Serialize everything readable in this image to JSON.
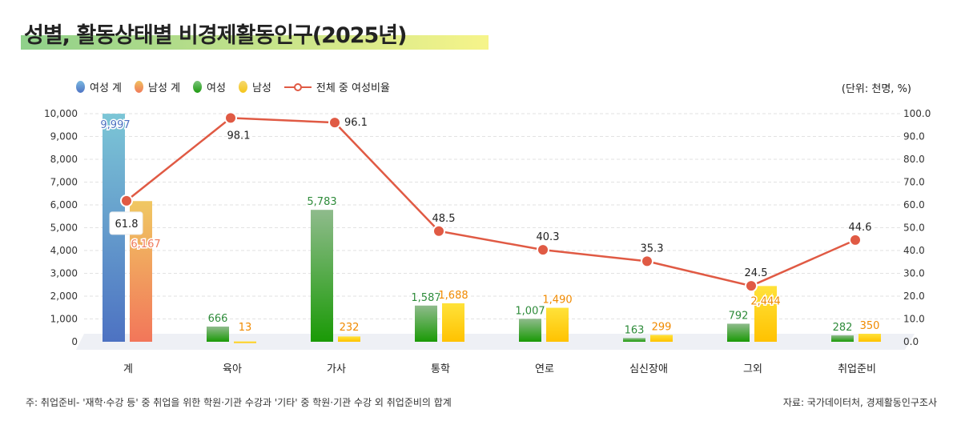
{
  "title": "성별, 활동상태별 비경제활동인구(2025년)",
  "unit": "(단위: 천명, %)",
  "note": "주: 취업준비- '재학·수강 등' 중 취업을 위한 학원·기관 수강과 '기타' 중 학원·기관 수강 외 취업준비의 합계",
  "source": "자료: 국가데이터처, 경제활동인구조사",
  "chart_data": {
    "type": "bar+line",
    "categories": [
      "계",
      "육아",
      "가사",
      "통학",
      "연로",
      "심신장애",
      "그외",
      "취업준비"
    ],
    "series": [
      {
        "name": "여성 계",
        "type": "bar",
        "values": [
          9997,
          null,
          null,
          null,
          null,
          null,
          null,
          null
        ],
        "color": "#4f74c4"
      },
      {
        "name": "남성 계",
        "type": "bar",
        "values": [
          6167,
          null,
          null,
          null,
          null,
          null,
          null,
          null
        ],
        "color": "#f07a5a"
      },
      {
        "name": "여성",
        "type": "bar",
        "values": [
          null,
          666,
          5783,
          1587,
          1007,
          163,
          792,
          282
        ],
        "color": "#2b9a2b"
      },
      {
        "name": "남성",
        "type": "bar",
        "values": [
          null,
          13,
          232,
          1688,
          1490,
          299,
          2444,
          350
        ],
        "color": "#f5c518"
      },
      {
        "name": "전체 중 여성비율",
        "type": "line",
        "axis": "right",
        "values": [
          61.8,
          98.1,
          96.1,
          48.5,
          40.3,
          35.3,
          24.5,
          44.6
        ],
        "color": "#e05a44"
      }
    ],
    "y_left": {
      "range": [
        0,
        10000
      ],
      "ticks": [
        "0",
        "1,000",
        "2,000",
        "3,000",
        "4,000",
        "5,000",
        "6,000",
        "7,000",
        "8,000",
        "9,000",
        "10,000"
      ]
    },
    "y_right": {
      "range": [
        0,
        100
      ],
      "ticks": [
        "0.0",
        "10.0",
        "20.0",
        "30.0",
        "40.0",
        "50.0",
        "60.0",
        "70.0",
        "80.0",
        "90.0",
        "100.0"
      ]
    },
    "bar_labels_female": [
      "9,997",
      "666",
      "5,783",
      "1,587",
      "1,007",
      "163",
      "792",
      "282"
    ],
    "bar_labels_male": [
      "6,167",
      "13",
      "232",
      "1,688",
      "1,490",
      "299",
      "2,444",
      "350"
    ],
    "line_labels": [
      "61.8",
      "98.1",
      "96.1",
      "48.5",
      "40.3",
      "35.3",
      "24.5",
      "44.6"
    ],
    "grid": true,
    "legend": "top-left"
  }
}
